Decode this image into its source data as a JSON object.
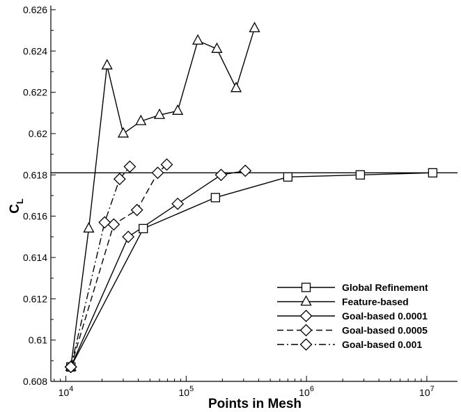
{
  "chart_data": {
    "type": "line",
    "xscale": "log",
    "xlim": [
      7500,
      18000000
    ],
    "ylim": [
      0.608,
      0.6262
    ],
    "xlabel": "Points in Mesh",
    "ylabel_main": "C",
    "ylabel_sub": "L",
    "xticks": [
      {
        "value": 10000,
        "base": "10",
        "exp": "4"
      },
      {
        "value": 100000,
        "base": "10",
        "exp": "5"
      },
      {
        "value": 1000000,
        "base": "10",
        "exp": "6"
      },
      {
        "value": 10000000,
        "base": "10",
        "exp": "7"
      }
    ],
    "yticks": [
      {
        "value": 0.608,
        "label": "0.608"
      },
      {
        "value": 0.61,
        "label": "0.61"
      },
      {
        "value": 0.612,
        "label": "0.612"
      },
      {
        "value": 0.614,
        "label": "0.614"
      },
      {
        "value": 0.616,
        "label": "0.616"
      },
      {
        "value": 0.618,
        "label": "0.618"
      },
      {
        "value": 0.62,
        "label": "0.62"
      },
      {
        "value": 0.622,
        "label": "0.622"
      },
      {
        "value": 0.624,
        "label": "0.624"
      },
      {
        "value": 0.626,
        "label": "0.626"
      }
    ],
    "reference_line": {
      "y": 0.6181
    },
    "grid": false,
    "legend_position": "bottom-right",
    "series": [
      {
        "name": "Global Refinement",
        "marker": "square",
        "dash": "solid",
        "x": [
          11000,
          44000,
          175000,
          700000,
          2800000,
          11200000
        ],
        "y": [
          0.6087,
          0.6154,
          0.6169,
          0.6179,
          0.618,
          0.6181
        ]
      },
      {
        "name": "Feature-based",
        "marker": "triangle",
        "dash": "solid",
        "x": [
          11000,
          15500,
          22000,
          30000,
          42000,
          60000,
          85000,
          125000,
          180000,
          260000,
          370000
        ],
        "y": [
          0.6087,
          0.6154,
          0.6233,
          0.62,
          0.6206,
          0.6209,
          0.6211,
          0.6245,
          0.6241,
          0.6222,
          0.6251
        ]
      },
      {
        "name": "Goal-based 0.0001",
        "marker": "diamond",
        "dash": "solid",
        "x": [
          11000,
          33000,
          85000,
          195000,
          310000
        ],
        "y": [
          0.6087,
          0.615,
          0.6166,
          0.618,
          0.6182
        ]
      },
      {
        "name": "Goal-based 0.0005",
        "marker": "diamond",
        "dash": "dashed",
        "x": [
          11000,
          25000,
          39000,
          58000,
          69000
        ],
        "y": [
          0.6087,
          0.6156,
          0.6163,
          0.6181,
          0.6185
        ]
      },
      {
        "name": "Goal-based 0.001",
        "marker": "diamond",
        "dash": "dashdot",
        "x": [
          11000,
          21000,
          28000,
          34000
        ],
        "y": [
          0.6087,
          0.6157,
          0.6178,
          0.6184
        ]
      }
    ]
  }
}
